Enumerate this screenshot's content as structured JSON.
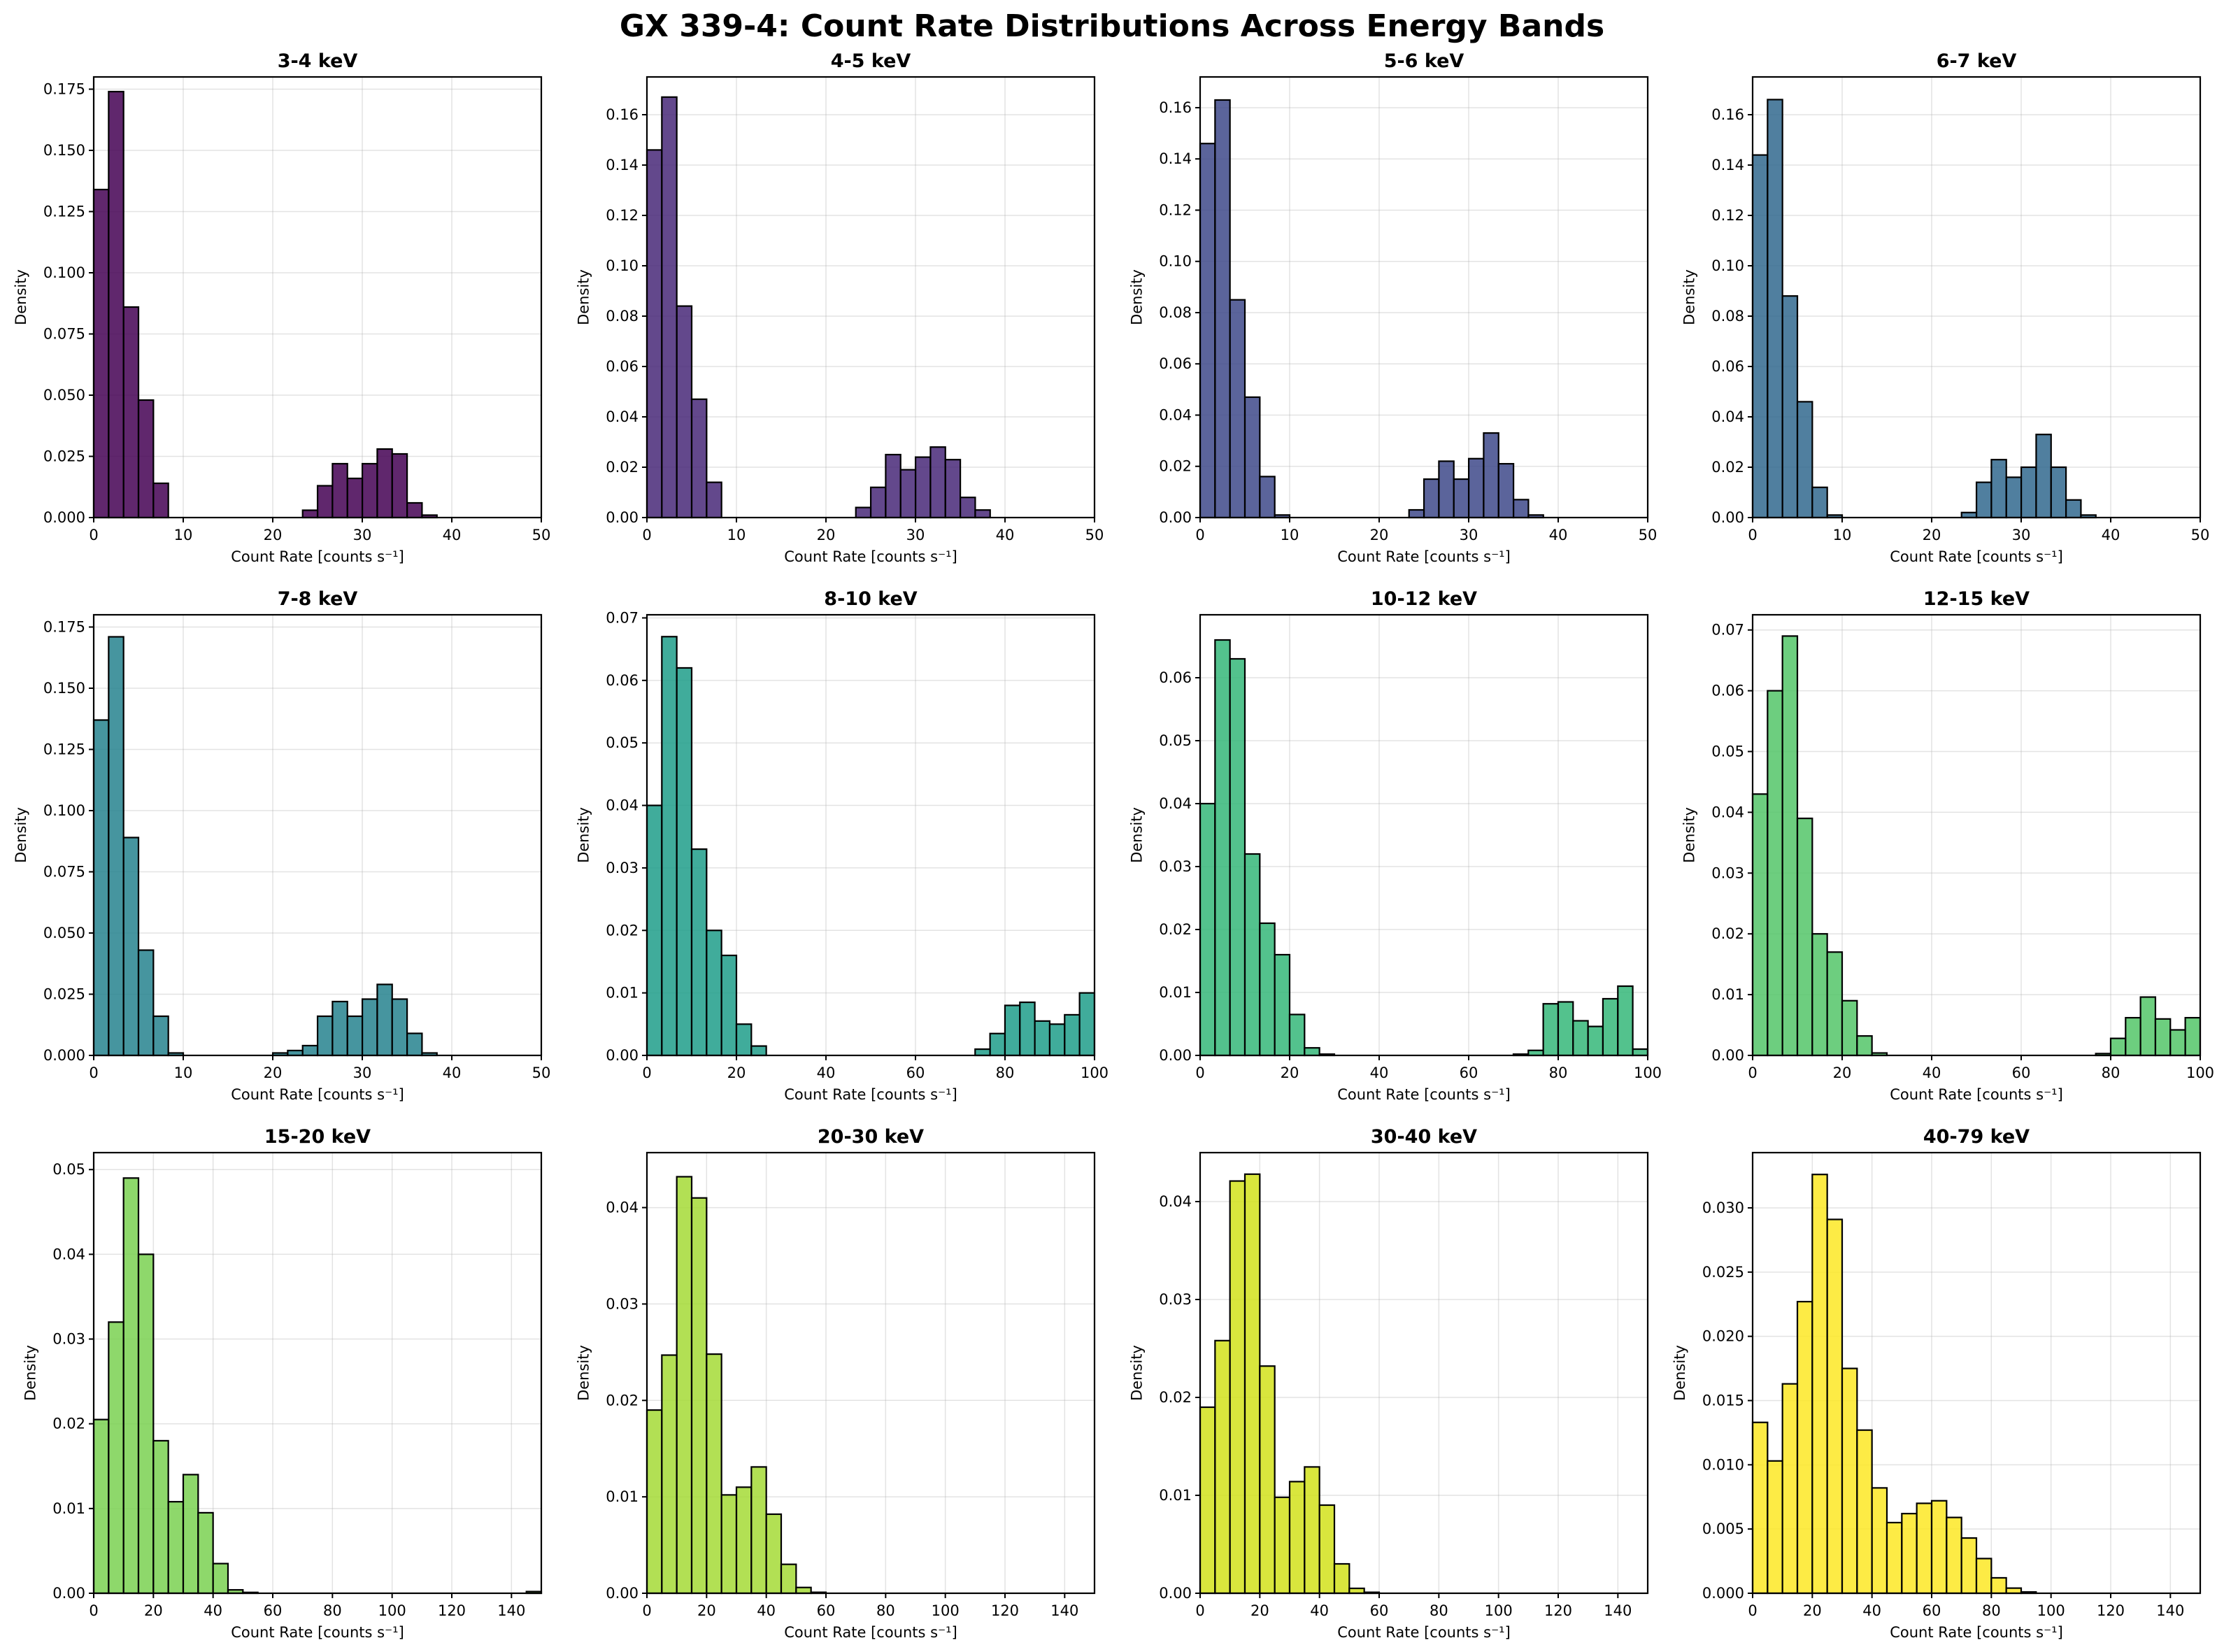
{
  "suptitle": "GX 339-4: Count Rate Distributions Across Energy Bands",
  "chart_data": [
    {
      "type": "bar",
      "title": "3-4 keV",
      "color": "#440154",
      "xlabel": "Count Rate [counts s⁻¹]",
      "ylabel": "Density",
      "xlim": [
        0,
        50
      ],
      "ylim": [
        0,
        0.18
      ],
      "xticks": [
        0,
        10,
        20,
        30,
        40,
        50
      ],
      "yticks": [
        "0.000",
        "0.025",
        "0.050",
        "0.075",
        "0.100",
        "0.125",
        "0.150",
        "0.175"
      ],
      "bin_width": 1.667,
      "values": [
        0.134,
        0.174,
        0.086,
        0.048,
        0.014,
        0,
        0,
        0,
        0,
        0,
        0,
        0,
        0,
        0,
        0.003,
        0.013,
        0.022,
        0.016,
        0.022,
        0.028,
        0.026,
        0.006,
        0.001,
        0,
        0,
        0,
        0,
        0,
        0,
        0
      ]
    },
    {
      "type": "bar",
      "title": "4-5 keV",
      "color": "#482878",
      "xlabel": "Count Rate [counts s⁻¹]",
      "ylabel": "Density",
      "xlim": [
        0,
        50
      ],
      "ylim": [
        0,
        0.175
      ],
      "xticks": [
        0,
        10,
        20,
        30,
        40,
        50
      ],
      "yticks": [
        "0.00",
        "0.02",
        "0.04",
        "0.06",
        "0.08",
        "0.10",
        "0.12",
        "0.14",
        "0.16"
      ],
      "bin_width": 1.667,
      "values": [
        0.146,
        0.167,
        0.084,
        0.047,
        0.014,
        0,
        0,
        0,
        0,
        0,
        0,
        0,
        0,
        0,
        0.004,
        0.012,
        0.025,
        0.019,
        0.024,
        0.028,
        0.023,
        0.008,
        0.003,
        0,
        0,
        0,
        0,
        0,
        0,
        0
      ]
    },
    {
      "type": "bar",
      "title": "5-6 keV",
      "color": "#3e4989",
      "xlabel": "Count Rate [counts s⁻¹]",
      "ylabel": "Density",
      "xlim": [
        0,
        50
      ],
      "ylim": [
        0,
        0.172
      ],
      "xticks": [
        0,
        10,
        20,
        30,
        40,
        50
      ],
      "yticks": [
        "0.00",
        "0.02",
        "0.04",
        "0.06",
        "0.08",
        "0.10",
        "0.12",
        "0.14",
        "0.16"
      ],
      "bin_width": 1.667,
      "values": [
        0.146,
        0.163,
        0.085,
        0.047,
        0.016,
        0.001,
        0,
        0,
        0,
        0,
        0,
        0,
        0,
        0,
        0.003,
        0.015,
        0.022,
        0.015,
        0.023,
        0.033,
        0.021,
        0.007,
        0.001,
        0,
        0,
        0,
        0,
        0,
        0,
        0
      ]
    },
    {
      "type": "bar",
      "title": "6-7 keV",
      "color": "#31688e",
      "xlabel": "Count Rate [counts s⁻¹]",
      "ylabel": "Density",
      "xlim": [
        0,
        50
      ],
      "ylim": [
        0,
        0.175
      ],
      "xticks": [
        0,
        10,
        20,
        30,
        40,
        50
      ],
      "yticks": [
        "0.00",
        "0.02",
        "0.04",
        "0.06",
        "0.08",
        "0.10",
        "0.12",
        "0.14",
        "0.16"
      ],
      "bin_width": 1.667,
      "values": [
        0.144,
        0.166,
        0.088,
        0.046,
        0.012,
        0.001,
        0,
        0,
        0,
        0,
        0,
        0,
        0,
        0,
        0.002,
        0.014,
        0.023,
        0.016,
        0.02,
        0.033,
        0.02,
        0.007,
        0.001,
        0,
        0,
        0,
        0,
        0,
        0,
        0
      ]
    },
    {
      "type": "bar",
      "title": "7-8 keV",
      "color": "#26828e",
      "xlabel": "Count Rate [counts s⁻¹]",
      "ylabel": "Density",
      "xlim": [
        0,
        50
      ],
      "ylim": [
        0,
        0.18
      ],
      "xticks": [
        0,
        10,
        20,
        30,
        40,
        50
      ],
      "yticks": [
        "0.000",
        "0.025",
        "0.050",
        "0.075",
        "0.100",
        "0.125",
        "0.150",
        "0.175"
      ],
      "bin_width": 1.667,
      "values": [
        0.137,
        0.171,
        0.089,
        0.043,
        0.016,
        0.001,
        0,
        0,
        0,
        0,
        0,
        0,
        0.001,
        0.002,
        0.004,
        0.016,
        0.022,
        0.016,
        0.023,
        0.029,
        0.023,
        0.009,
        0.001,
        0,
        0,
        0,
        0,
        0,
        0,
        0
      ]
    },
    {
      "type": "bar",
      "title": "8-10 keV",
      "color": "#1f9e89",
      "xlabel": "Count Rate [counts s⁻¹]",
      "ylabel": "Density",
      "xlim": [
        0,
        100
      ],
      "ylim": [
        0,
        0.0705
      ],
      "xticks": [
        0,
        20,
        40,
        60,
        80,
        100
      ],
      "yticks": [
        "0.00",
        "0.01",
        "0.02",
        "0.03",
        "0.04",
        "0.05",
        "0.06",
        "0.07"
      ],
      "bin_width": 3.333,
      "values": [
        0.04,
        0.067,
        0.062,
        0.033,
        0.02,
        0.016,
        0.005,
        0.0015,
        0,
        0,
        0,
        0,
        0,
        0,
        0,
        0,
        0,
        0,
        0,
        0,
        0,
        0,
        0.001,
        0.0035,
        0.008,
        0.0085,
        0.0055,
        0.005,
        0.0065,
        0.01
      ]
    },
    {
      "type": "bar",
      "title": "10-12 keV",
      "color": "#35b779",
      "xlabel": "Count Rate [counts s⁻¹]",
      "ylabel": "Density",
      "xlim": [
        0,
        100
      ],
      "ylim": [
        0,
        0.07
      ],
      "xticks": [
        0,
        20,
        40,
        60,
        80,
        100
      ],
      "yticks": [
        "0.00",
        "0.01",
        "0.02",
        "0.03",
        "0.04",
        "0.05",
        "0.06"
      ],
      "bin_width": 3.333,
      "values": [
        0.04,
        0.066,
        0.063,
        0.032,
        0.021,
        0.016,
        0.0065,
        0.0012,
        0.0002,
        0,
        0,
        0,
        0,
        0,
        0,
        0,
        0,
        0,
        0,
        0,
        0,
        0.0002,
        0.0008,
        0.0082,
        0.0085,
        0.0055,
        0.0046,
        0.009,
        0.011,
        0.001
      ]
    },
    {
      "type": "bar",
      "title": "12-15 keV",
      "color": "#54c568",
      "xlabel": "Count Rate [counts s⁻¹]",
      "ylabel": "Density",
      "xlim": [
        0,
        100
      ],
      "ylim": [
        0,
        0.0725
      ],
      "xticks": [
        0,
        20,
        40,
        60,
        80,
        100
      ],
      "yticks": [
        "0.00",
        "0.01",
        "0.02",
        "0.03",
        "0.04",
        "0.05",
        "0.06",
        "0.07"
      ],
      "bin_width": 3.333,
      "values": [
        0.043,
        0.06,
        0.069,
        0.039,
        0.02,
        0.017,
        0.009,
        0.0032,
        0.0004,
        0,
        0,
        0,
        0,
        0,
        0,
        0,
        0,
        0,
        0,
        0,
        0,
        0,
        0,
        0.0003,
        0.0028,
        0.0062,
        0.0096,
        0.006,
        0.0042,
        0.0062
      ]
    },
    {
      "type": "bar",
      "title": "15-20 keV",
      "color": "#7ad151",
      "xlabel": "Count Rate [counts s⁻¹]",
      "ylabel": "Density",
      "xlim": [
        0,
        150
      ],
      "ylim": [
        0,
        0.052
      ],
      "xticks": [
        0,
        20,
        40,
        60,
        80,
        100,
        120,
        140
      ],
      "yticks": [
        "0.00",
        "0.01",
        "0.02",
        "0.03",
        "0.04",
        "0.05"
      ],
      "bin_width": 5,
      "values": [
        0.0205,
        0.032,
        0.049,
        0.04,
        0.018,
        0.0108,
        0.014,
        0.0095,
        0.0035,
        0.0004,
        0.0001,
        0,
        0,
        0,
        0,
        0,
        0,
        0,
        0,
        0,
        0,
        0,
        0,
        0,
        0,
        0,
        0,
        0,
        0,
        0.0002
      ]
    },
    {
      "type": "bar",
      "title": "20-30 keV",
      "color": "#a5db36",
      "xlabel": "Count Rate [counts s⁻¹]",
      "ylabel": "Density",
      "xlim": [
        0,
        150
      ],
      "ylim": [
        0,
        0.0457
      ],
      "xticks": [
        0,
        20,
        40,
        60,
        80,
        100,
        120,
        140
      ],
      "yticks": [
        "0.00",
        "0.01",
        "0.02",
        "0.03",
        "0.04"
      ],
      "bin_width": 5,
      "values": [
        0.019,
        0.0247,
        0.0432,
        0.041,
        0.0248,
        0.0102,
        0.011,
        0.0131,
        0.0082,
        0.003,
        0.0006,
        0.0001,
        0,
        0,
        0,
        0,
        0,
        0,
        0,
        0,
        0,
        0,
        0,
        0,
        0,
        0,
        0,
        0,
        0,
        0
      ]
    },
    {
      "type": "bar",
      "title": "30-40 keV",
      "color": "#d2e21b",
      "xlabel": "Count Rate [counts s⁻¹]",
      "ylabel": "Density",
      "xlim": [
        0,
        150
      ],
      "ylim": [
        0,
        0.045
      ],
      "xticks": [
        0,
        20,
        40,
        60,
        80,
        100,
        120,
        140
      ],
      "yticks": [
        "0.00",
        "0.01",
        "0.02",
        "0.03",
        "0.04"
      ],
      "bin_width": 5,
      "values": [
        0.019,
        0.0258,
        0.0421,
        0.0428,
        0.0232,
        0.0098,
        0.0114,
        0.0129,
        0.009,
        0.003,
        0.0005,
        0.0001,
        0,
        0,
        0,
        0,
        0,
        0,
        0,
        0,
        0,
        0,
        0,
        0,
        0,
        0,
        0,
        0,
        0,
        0
      ]
    },
    {
      "type": "bar",
      "title": "40-79 keV",
      "color": "#fde725",
      "xlabel": "Count Rate [counts s⁻¹]",
      "ylabel": "Density",
      "xlim": [
        0,
        150
      ],
      "ylim": [
        0,
        0.0343
      ],
      "xticks": [
        0,
        20,
        40,
        60,
        80,
        100,
        120,
        140
      ],
      "yticks": [
        "0.000",
        "0.005",
        "0.010",
        "0.015",
        "0.020",
        "0.025",
        "0.030"
      ],
      "bin_width": 5,
      "values": [
        0.0133,
        0.0103,
        0.0163,
        0.0227,
        0.0326,
        0.0291,
        0.0175,
        0.0127,
        0.0082,
        0.0055,
        0.0062,
        0.007,
        0.0072,
        0.0059,
        0.0043,
        0.0027,
        0.0012,
        0.0004,
        0.0001,
        0,
        0,
        0,
        0,
        0,
        0,
        0,
        0,
        0,
        0,
        0
      ]
    }
  ]
}
